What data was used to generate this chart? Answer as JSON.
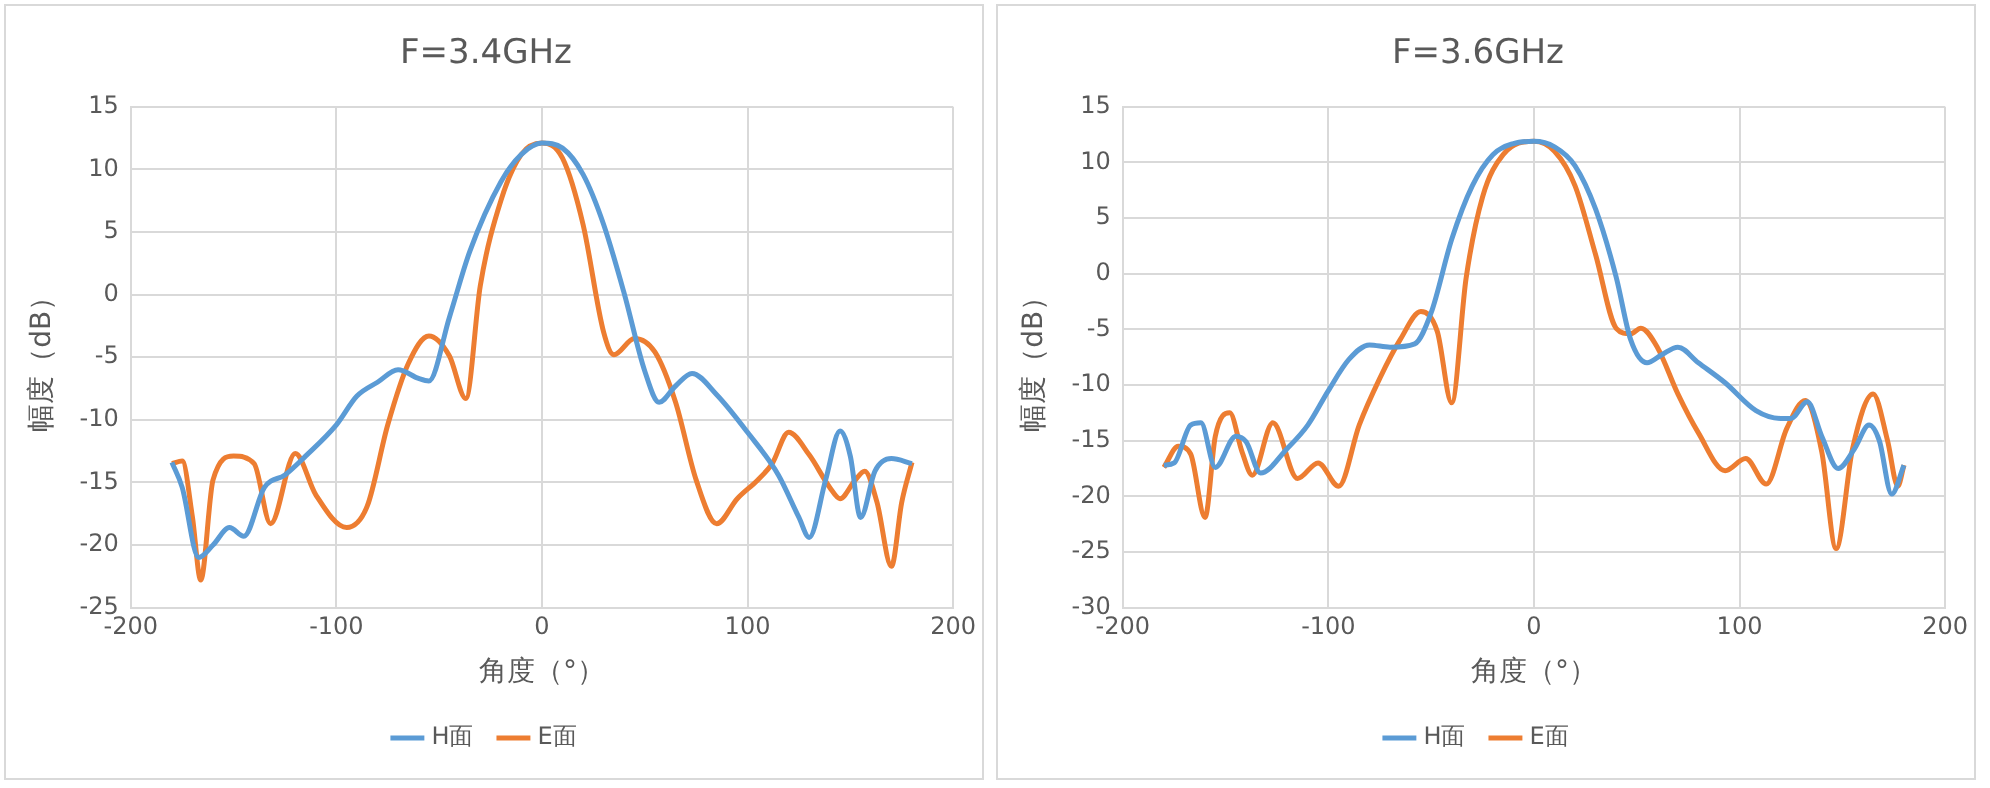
{
  "chart_data": [
    {
      "type": "line",
      "title": "F=3.4GHz",
      "xlabel": "角度（°）",
      "ylabel": "幅度（dB）",
      "xlim": [
        -200,
        200
      ],
      "xticks": [
        -200,
        -100,
        0,
        100,
        200
      ],
      "ylim": [
        -25,
        15
      ],
      "yticks": [
        -25,
        -20,
        -15,
        -10,
        -5,
        0,
        5,
        10,
        15
      ],
      "grid": true,
      "legend": "bottom",
      "marker": "none",
      "line_style": "solid",
      "series": [
        {
          "name": "H面",
          "color": "#5b9bd5",
          "x": [
            -180,
            -175,
            -167,
            -160,
            -152,
            -145,
            -135,
            -125,
            -115,
            -100,
            -90,
            -80,
            -70,
            -60,
            -55,
            -45,
            -35,
            -20,
            -10,
            0,
            10,
            20,
            30,
            40,
            50,
            57,
            65,
            73,
            85,
            100,
            115,
            125,
            130,
            138,
            145,
            150,
            155,
            162,
            170,
            180
          ],
          "values": [
            -13.4,
            -15.4,
            -21,
            -20,
            -18.6,
            -19.3,
            -15.4,
            -14.4,
            -12.9,
            -10.4,
            -8.1,
            -7,
            -6,
            -6.7,
            -6.9,
            -1.8,
            3.5,
            9,
            11.2,
            12.1,
            11.7,
            9.6,
            5.6,
            0.1,
            -6.1,
            -8.6,
            -7.3,
            -6.3,
            -8,
            -11,
            -14.4,
            -17.8,
            -19.4,
            -14.8,
            -10.9,
            -12.9,
            -17.8,
            -14.1,
            -13.1,
            -13.5
          ]
        },
        {
          "name": "E面",
          "color": "#ed7d31",
          "x": [
            -180,
            -175,
            -170,
            -166,
            -160,
            -150,
            -140,
            -132,
            -120,
            -110,
            -95,
            -85,
            -75,
            -65,
            -55,
            -45,
            -37,
            -30,
            -20,
            -10,
            0,
            10,
            20,
            30,
            35,
            45,
            55,
            65,
            75,
            85,
            95,
            105,
            112,
            120,
            130,
            140,
            145,
            152,
            157,
            163,
            170,
            175,
            180
          ],
          "values": [
            -13.5,
            -13.3,
            -17.8,
            -22.8,
            -14.8,
            -12.9,
            -13.5,
            -18.3,
            -12.7,
            -16,
            -18.6,
            -16.9,
            -10.4,
            -5.5,
            -3.3,
            -4.9,
            -8.3,
            0.7,
            7.5,
            11.2,
            12.1,
            10.9,
            5.6,
            -3,
            -4.8,
            -3.5,
            -4.6,
            -8.6,
            -14.8,
            -18.3,
            -16.3,
            -14.8,
            -13.5,
            -11,
            -12.8,
            -15.4,
            -16.3,
            -14.9,
            -14.1,
            -16.6,
            -21.7,
            -16.6,
            -13.4
          ]
        }
      ]
    },
    {
      "type": "line",
      "title": "F=3.6GHz",
      "xlabel": "角度（°）",
      "ylabel": "幅度（dB）",
      "xlim": [
        -200,
        200
      ],
      "xticks": [
        -200,
        -100,
        0,
        100,
        200
      ],
      "ylim": [
        -30,
        15
      ],
      "yticks": [
        -30,
        -25,
        -20,
        -15,
        -10,
        -5,
        0,
        5,
        10,
        15
      ],
      "grid": true,
      "legend": "bottom",
      "marker": "none",
      "line_style": "solid",
      "series": [
        {
          "name": "H面",
          "color": "#5b9bd5",
          "x": [
            -180,
            -175,
            -167,
            -162,
            -155,
            -145,
            -140,
            -133,
            -120,
            -110,
            -100,
            -90,
            -80,
            -70,
            -58,
            -50,
            -40,
            -30,
            -20,
            -10,
            0,
            10,
            20,
            30,
            40,
            47,
            55,
            62,
            70,
            80,
            93,
            108,
            120,
            125,
            133,
            140,
            148,
            156,
            163,
            168,
            174,
            180
          ],
          "values": [
            -17.2,
            -17,
            -13.6,
            -13.4,
            -17.4,
            -14.6,
            -15.1,
            -17.9,
            -15.7,
            -13.6,
            -10.5,
            -7.7,
            -6.4,
            -6.6,
            -6.3,
            -3.5,
            3.1,
            7.9,
            10.7,
            11.7,
            11.9,
            11.4,
            9.7,
            5.8,
            -0.3,
            -5.9,
            -8,
            -7.3,
            -6.6,
            -8,
            -9.8,
            -12.3,
            -13,
            -13,
            -11.5,
            -14.6,
            -17.5,
            -15.7,
            -13.6,
            -15,
            -19.8,
            -17.2
          ]
        },
        {
          "name": "E面",
          "color": "#ed7d31",
          "x": [
            -180,
            -173,
            -167,
            -160,
            -155,
            -148,
            -142,
            -137,
            -127,
            -115,
            -105,
            -95,
            -85,
            -75,
            -65,
            -55,
            -47,
            -40,
            -33,
            -25,
            -15,
            0,
            10,
            20,
            30,
            40,
            47,
            52,
            60,
            70,
            80,
            93,
            103,
            113,
            123,
            132,
            140,
            147,
            155,
            165,
            172,
            177,
            180
          ],
          "values": [
            -17.4,
            -15.5,
            -16.2,
            -21.9,
            -14.6,
            -12.5,
            -16,
            -18.1,
            -13.4,
            -18.4,
            -17,
            -19.1,
            -13.6,
            -9.4,
            -5.9,
            -3.4,
            -5.2,
            -11.6,
            -0.4,
            6.9,
            10.7,
            11.9,
            11,
            7.9,
            1.7,
            -4.9,
            -5.4,
            -4.9,
            -6.6,
            -10.8,
            -14.3,
            -17.7,
            -16.6,
            -18.9,
            -13.9,
            -11.4,
            -16,
            -24.7,
            -15.7,
            -10.8,
            -15,
            -19.1,
            -17.2
          ]
        }
      ]
    }
  ]
}
